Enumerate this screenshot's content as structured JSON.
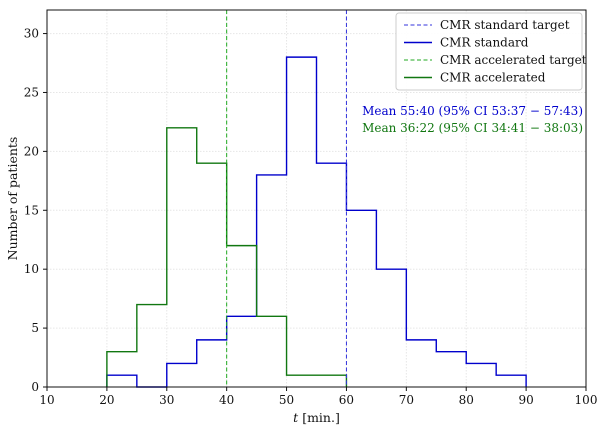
{
  "chart_data": {
    "type": "histogram",
    "xlabel_var": "t",
    "xlabel_unit": "[min.]",
    "ylabel": "Number of patients",
    "xlim": [
      10,
      100
    ],
    "ylim": [
      0,
      32
    ],
    "xticks": [
      10,
      20,
      30,
      40,
      50,
      60,
      70,
      80,
      90,
      100
    ],
    "yticks": [
      0,
      5,
      10,
      15,
      20,
      25,
      30
    ],
    "grid": true,
    "legend_position": "top-right",
    "bin_edges": [
      20,
      25,
      30,
      35,
      40,
      45,
      50,
      55,
      60,
      65,
      70,
      75,
      80,
      85,
      90
    ],
    "series": [
      {
        "name": "CMR standard",
        "color": "#0000cc",
        "counts": [
          1,
          0,
          2,
          4,
          6,
          18,
          28,
          19,
          15,
          10,
          4,
          3,
          2,
          1
        ]
      },
      {
        "name": "CMR accelerated",
        "color": "#117711",
        "counts": [
          3,
          7,
          22,
          19,
          12,
          6,
          1,
          1,
          0,
          0,
          0,
          0,
          0,
          0
        ]
      }
    ],
    "targets": [
      {
        "name": "CMR standard target",
        "x": 60,
        "color": "#3333dd"
      },
      {
        "name": "CMR accelerated target",
        "x": 40,
        "color": "#22aa22"
      }
    ],
    "annotations": [
      {
        "text": "Mean 55:40 (95%  CI  53:37 − 57:43)",
        "color": "#0000cc"
      },
      {
        "text": "Mean 36:22 (95%  CI  34:41 − 38:03)",
        "color": "#117711"
      }
    ]
  }
}
